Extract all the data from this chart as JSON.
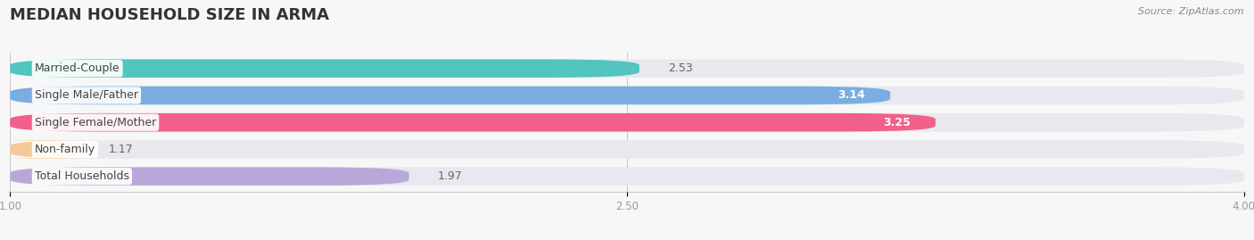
{
  "title": "MEDIAN HOUSEHOLD SIZE IN ARMA",
  "source": "Source: ZipAtlas.com",
  "categories": [
    "Married-Couple",
    "Single Male/Father",
    "Single Female/Mother",
    "Non-family",
    "Total Households"
  ],
  "values": [
    2.53,
    3.14,
    3.25,
    1.17,
    1.97
  ],
  "bar_colors": [
    "#52c5c0",
    "#7aaee0",
    "#f0608a",
    "#f5c99a",
    "#b8a8d8"
  ],
  "bar_bg_color": "#e8e8ee",
  "xlim_start": 1.0,
  "xlim_end": 4.0,
  "xticks": [
    1.0,
    2.5,
    4.0
  ],
  "xticklabels": [
    "1.00",
    "2.50",
    "4.00"
  ],
  "title_fontsize": 13,
  "label_fontsize": 9,
  "value_fontsize": 9,
  "background_color": "#f7f7f7",
  "bar_height": 0.68,
  "label_color": "#444444",
  "value_color_inside": "#ffffff",
  "value_color_outside": "#666666",
  "inside_threshold": 2.8
}
